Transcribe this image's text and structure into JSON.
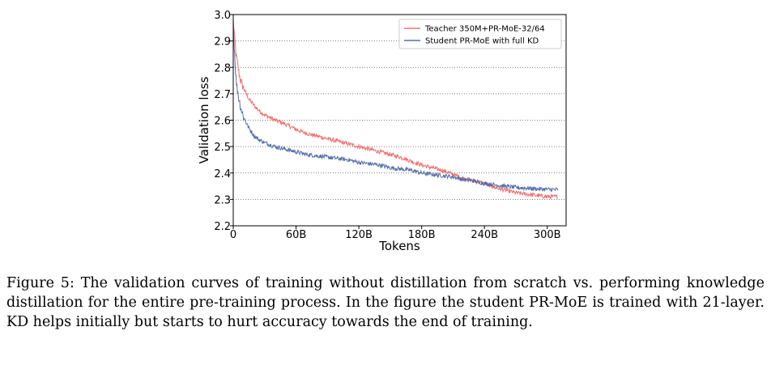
{
  "caption": "Figure 5: The validation curves of training without distillation from scratch vs. performing knowledge distillation for the entire pre-training process. In the figure the student PR-MoE is trained with 21-layer. KD helps initially but starts to hurt accuracy towards the end of training.",
  "chart_data": {
    "type": "line",
    "xlabel": "Tokens",
    "ylabel": "Validation loss",
    "xlim": [
      0,
      318
    ],
    "ylim": [
      2.2,
      3.0
    ],
    "x_ticks": [
      0,
      60,
      120,
      180,
      240,
      300
    ],
    "x_tick_labels": [
      "0",
      "60B",
      "120B",
      "180B",
      "240B",
      "300B"
    ],
    "y_ticks": [
      2.2,
      2.3,
      2.4,
      2.5,
      2.6,
      2.7,
      2.8,
      2.9,
      3.0
    ],
    "y_tick_labels": [
      "2.2",
      "2.3",
      "2.4",
      "2.5",
      "2.6",
      "2.7",
      "2.8",
      "2.9",
      "3.0"
    ],
    "grid": "horizontal-dotted",
    "legend_position": "top-right",
    "series": [
      {
        "name": "Teacher 350M+PR-MoE-32/64",
        "color": "#f07070",
        "x": [
          0,
          1,
          2,
          3,
          5,
          7,
          10,
          15,
          20,
          25,
          30,
          40,
          50,
          60,
          70,
          80,
          90,
          100,
          110,
          120,
          130,
          140,
          150,
          160,
          170,
          180,
          190,
          200,
          210,
          220,
          230,
          240,
          250,
          260,
          270,
          280,
          290,
          300,
          310
        ],
        "y": [
          2.98,
          2.93,
          2.88,
          2.84,
          2.79,
          2.75,
          2.72,
          2.68,
          2.655,
          2.635,
          2.62,
          2.6,
          2.585,
          2.565,
          2.55,
          2.54,
          2.53,
          2.52,
          2.51,
          2.5,
          2.49,
          2.48,
          2.47,
          2.46,
          2.445,
          2.43,
          2.42,
          2.41,
          2.395,
          2.38,
          2.37,
          2.36,
          2.345,
          2.335,
          2.325,
          2.32,
          2.315,
          2.31,
          2.31
        ]
      },
      {
        "name": "Student PR-MoE with full KD",
        "color": "#5470a8",
        "x": [
          0,
          1,
          2,
          3,
          5,
          7,
          10,
          15,
          20,
          25,
          30,
          40,
          50,
          60,
          70,
          80,
          90,
          100,
          110,
          120,
          130,
          140,
          150,
          160,
          170,
          180,
          190,
          200,
          210,
          220,
          230,
          240,
          250,
          260,
          270,
          280,
          290,
          300,
          310
        ],
        "y": [
          2.96,
          2.88,
          2.8,
          2.74,
          2.69,
          2.65,
          2.61,
          2.57,
          2.54,
          2.525,
          2.515,
          2.5,
          2.49,
          2.48,
          2.47,
          2.465,
          2.46,
          2.455,
          2.45,
          2.44,
          2.435,
          2.43,
          2.42,
          2.415,
          2.41,
          2.4,
          2.395,
          2.39,
          2.385,
          2.375,
          2.37,
          2.36,
          2.355,
          2.35,
          2.345,
          2.343,
          2.34,
          2.338,
          2.337
        ]
      }
    ]
  }
}
